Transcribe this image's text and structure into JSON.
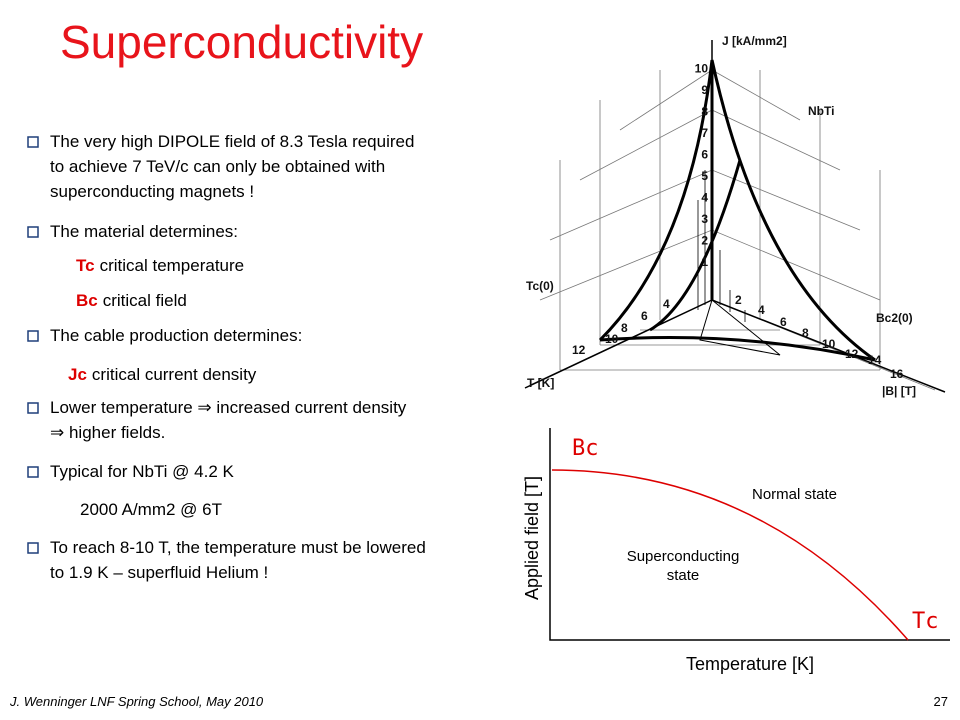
{
  "title": "Superconductivity",
  "bullets": [
    {
      "lines": [
        "The very high DIPOLE field of 8.3 Tesla required",
        "to achieve 7 TeV/c can only be obtained with",
        "superconducting magnets !"
      ]
    },
    {
      "lines": [
        "The material determines:"
      ]
    },
    {
      "term": "Tc",
      "text": "critical temperature"
    },
    {
      "term": "Bc",
      "text": "critical field"
    },
    {
      "lines": [
        "The cable production determines:"
      ]
    },
    {
      "term": "Jc",
      "text": "critical current density"
    },
    {
      "lines": [
        "Lower temperature ⇒ increased current density",
        "⇒ higher fields."
      ]
    },
    {
      "lines": [
        "Typical for NbTi @ 4.2 K"
      ]
    },
    {
      "text": "2000 A/mm2 @ 6T"
    },
    {
      "lines": [
        "To reach 8-10 T, the temperature must be lowered",
        "to 1.9 K – superfluid Helium !"
      ]
    }
  ],
  "figure_3d": {
    "j_axis_label": "J [kA/mm2]",
    "material": "NbTi",
    "tc_label": "Tc(0)",
    "bc2_label": "Bc2(0)",
    "t_axis_label": "T [K]",
    "b_axis_label": "|B| [T]",
    "j_ticks": [
      "1",
      "2",
      "3",
      "4",
      "5",
      "6",
      "7",
      "8",
      "9",
      "10"
    ],
    "t_ticks": [
      "4",
      "6",
      "8",
      "10",
      "12"
    ],
    "b_ticks": [
      "2",
      "4",
      "6",
      "8",
      "10",
      "12",
      "14",
      "16"
    ]
  },
  "figure_phase": {
    "bc_label": "Bc",
    "tc_label": "Tc",
    "normal": "Normal state",
    "superconducting": [
      "Superconducting",
      "state"
    ],
    "y_label": "Applied field [T]",
    "x_label": "Temperature [K]"
  },
  "footer": {
    "author": "J. Wenninger LNF Spring School, May 2010",
    "page": "27"
  }
}
